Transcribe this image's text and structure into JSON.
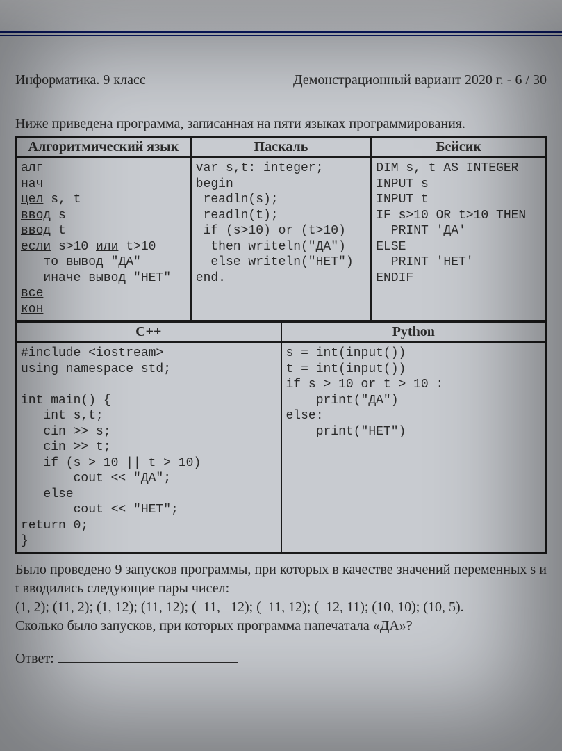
{
  "colors": {
    "page_bg": "#c8cbd0",
    "text": "#2a2a2a",
    "border": "#1a1a1a",
    "rule": "#0a1a6a"
  },
  "fonts": {
    "body": "Times New Roman",
    "code": "Courier New",
    "body_size_pt": 15,
    "code_size_pt": 13.5
  },
  "header": {
    "left": "Информатика. 9 класс",
    "right": "Демонстрационный вариант 2020 г. - 6 / 30"
  },
  "intro": "Ниже приведена программа, записанная на пяти языках программирования.",
  "table1": {
    "headers": [
      "Алгоритмический язык",
      "Паскаль",
      "Бейсик"
    ],
    "col_widths_pct": [
      33,
      34,
      33
    ],
    "cells": {
      "alg": {
        "lines": [
          {
            "t": "алг",
            "u": true
          },
          {
            "t": "нач",
            "u": true
          },
          {
            "t": "цел",
            "u": true,
            "tail": " s, t"
          },
          {
            "t": "ввод",
            "u": true,
            "tail": " s"
          },
          {
            "t": "ввод",
            "u": true,
            "tail": " t"
          },
          {
            "t": "если",
            "u": true,
            "tail": " s>10 ",
            "t2": "или",
            "u2": true,
            "tail2": " t>10"
          },
          {
            "pre": "   ",
            "t": "то",
            "u": true,
            "tail": " ",
            "t2": "вывод",
            "u2": true,
            "tail2": " \"ДА\""
          },
          {
            "pre": "   ",
            "t": "иначе",
            "u": true,
            "tail": " ",
            "t2": "вывод",
            "u2": true,
            "tail2": " \"НЕТ\""
          },
          {
            "t": "все",
            "u": true
          },
          {
            "t": "кон",
            "u": true
          }
        ]
      },
      "pascal": "var s,t: integer;\nbegin\n readln(s);\n readln(t);\n if (s>10) or (t>10)\n  then writeln(\"ДА\")\n  else writeln(\"НЕТ\")\nend.",
      "basic": "DIM s, t AS INTEGER\nINPUT s\nINPUT t\nIF s>10 OR t>10 THEN\n  PRINT 'ДА'\nELSE\n  PRINT 'НЕТ'\nENDIF"
    }
  },
  "table2": {
    "headers": [
      "С++",
      "Python"
    ],
    "col_widths_pct": [
      50,
      50
    ],
    "cells": {
      "cpp": "#include <iostream>\nusing namespace std;\n\nint main() {\n   int s,t;\n   cin >> s;\n   cin >> t;\n   if (s > 10 || t > 10)\n       cout << \"ДА\";\n   else\n       cout << \"НЕТ\";\nreturn 0;\n}",
      "python": "s = int(input())\nt = int(input())\nif s > 10 or t > 10 :\n    print(\"ДА\")\nelse:\n    print(\"НЕТ\")"
    }
  },
  "below": {
    "p1": "Было проведено 9 запусков программы, при которых в качестве значений переменных s и t вводились следующие пары чисел:",
    "pairs": "(1, 2); (11, 2); (1, 12); (11, 12); (–11, –12); (–11, 12); (–12, 11); (10, 10); (10, 5).",
    "q": "Сколько было запусков, при которых программа напечатала «ДА»?"
  },
  "answer_label": "Ответ:"
}
